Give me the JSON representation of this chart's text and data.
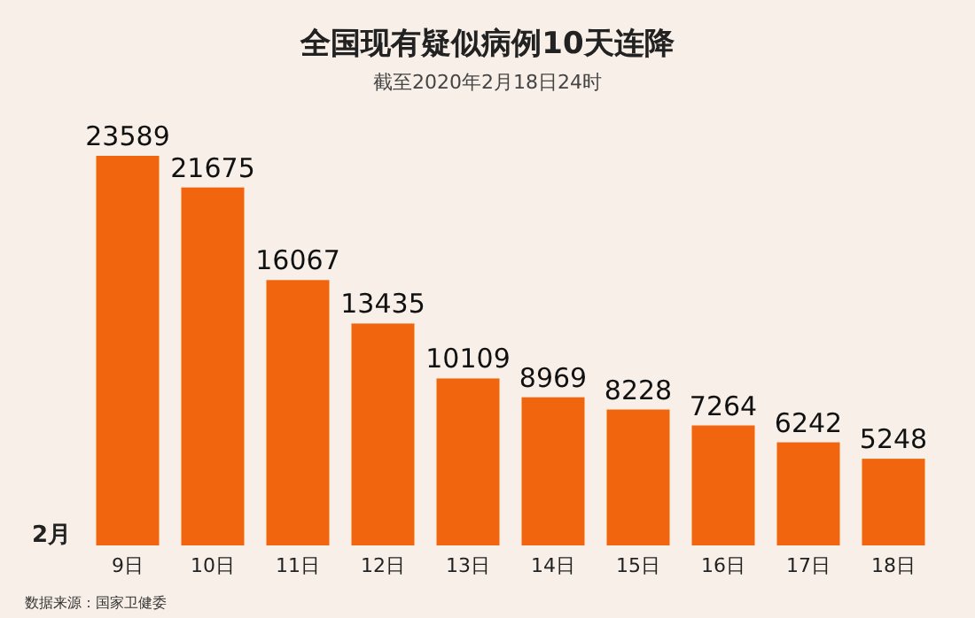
{
  "chart_data": {
    "type": "bar",
    "title": "全国现有疑似病例10天连降",
    "subtitle": "截至2020年2月18日24时",
    "xlabel": "2月",
    "categories": [
      "9日",
      "10日",
      "11日",
      "12日",
      "13日",
      "14日",
      "15日",
      "16日",
      "17日",
      "18日"
    ],
    "values": [
      23589,
      21675,
      16067,
      13435,
      10109,
      8969,
      8228,
      7264,
      6242,
      5248
    ],
    "color": "#f2650f",
    "data_labels": true,
    "annotations": [
      "数据来源：国家卫健委"
    ]
  }
}
